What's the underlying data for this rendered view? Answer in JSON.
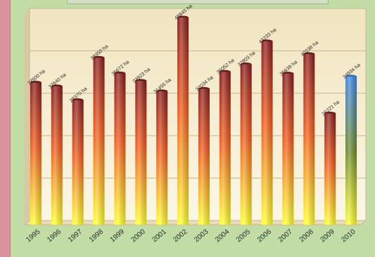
{
  "chart_data": {
    "type": "bar",
    "categories": [
      "1995",
      "1996",
      "1997",
      "1998",
      "1999",
      "2000",
      "2001",
      "2002",
      "2003",
      "2004",
      "2005",
      "2006",
      "2007",
      "2008",
      "2009",
      "2010"
    ],
    "values": [
      33500,
      32640,
      29370,
      39350,
      35672,
      33923,
      31455,
      48845,
      32034,
      36052,
      37803,
      43233,
      35639,
      40238,
      26221,
      34934
    ],
    "data_labels": [
      "33500 ha",
      "32640 ha",
      "29370 ha",
      "39350 ha",
      "35672 ha",
      "33923 ha",
      "31455 ha",
      "48845 ha",
      "32034 ha",
      "36052 ha",
      "37803 ha",
      "43233 ha",
      "35639 ha",
      "40238 ha",
      "26221 ha",
      "34934 ha"
    ],
    "highlight_index": 15,
    "ylim": [
      0,
      50000
    ],
    "grid": true,
    "colors": {
      "bar_top": "#8a1c1c",
      "bar_mid": "#f25a1c",
      "bar_bottom": "#ffff2e",
      "highlight_top": "#3b86e8",
      "highlight_mid": "#6f8a2c",
      "highlight_bottom": "#ffff2e",
      "plot_bg_top": "#f1e4bf",
      "plot_bg_bottom": "#fbf7e6",
      "page_bg": "#c1dca4"
    }
  }
}
